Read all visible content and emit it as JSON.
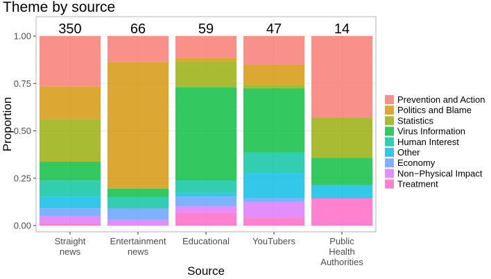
{
  "chart_data": {
    "type": "bar",
    "stacked": true,
    "title": "Theme by source",
    "xlabel": "Source",
    "ylabel": "Proportion",
    "ylim": [
      0,
      1
    ],
    "yticks": [
      "0.00",
      "0.25",
      "0.50",
      "0.75",
      "1.00"
    ],
    "ytick_values": [
      0,
      0.25,
      0.5,
      0.75,
      1.0
    ],
    "categories": [
      [
        "Straight",
        "news"
      ],
      [
        "Entertainment",
        "news"
      ],
      [
        "Educational"
      ],
      [
        "YouTubers"
      ],
      [
        "Public",
        "Health",
        "Authorities"
      ]
    ],
    "counts": [
      "350",
      "66",
      "59",
      "47",
      "14"
    ],
    "legend_position": "right",
    "series": [
      {
        "name": "Treatment",
        "color": "#FF61C3",
        "values": [
          0.011,
          0.0,
          0.068,
          0.04,
          0.143
        ]
      },
      {
        "name": "Non−Physical Impact",
        "color": "#DB72FB",
        "values": [
          0.04,
          0.03,
          0.034,
          0.085,
          0.0
        ]
      },
      {
        "name": "Economy",
        "color": "#619CFF",
        "values": [
          0.04,
          0.06,
          0.051,
          0.02,
          0.0
        ]
      },
      {
        "name": "Other",
        "color": "#00B9E3",
        "values": [
          0.06,
          0.0,
          0.017,
          0.13,
          0.071
        ]
      },
      {
        "name": "Human Interest",
        "color": "#00C19F",
        "values": [
          0.086,
          0.06,
          0.068,
          0.11,
          0.0
        ]
      },
      {
        "name": "Virus Information",
        "color": "#00BA38",
        "values": [
          0.1,
          0.045,
          0.492,
          0.34,
          0.143
        ]
      },
      {
        "name": "Statistics",
        "color": "#93AA00",
        "values": [
          0.223,
          0.0,
          0.136,
          0.02,
          0.214
        ]
      },
      {
        "name": "Politics and Blame",
        "color": "#D39200",
        "values": [
          0.174,
          0.667,
          0.017,
          0.105,
          0.0
        ]
      },
      {
        "name": "Prevention and Action",
        "color": "#F8766D",
        "values": [
          0.266,
          0.138,
          0.117,
          0.15,
          0.429
        ]
      }
    ],
    "legend_order": [
      "Prevention and Action",
      "Politics and Blame",
      "Statistics",
      "Virus Information",
      "Human Interest",
      "Other",
      "Economy",
      "Non−Physical Impact",
      "Treatment"
    ]
  }
}
